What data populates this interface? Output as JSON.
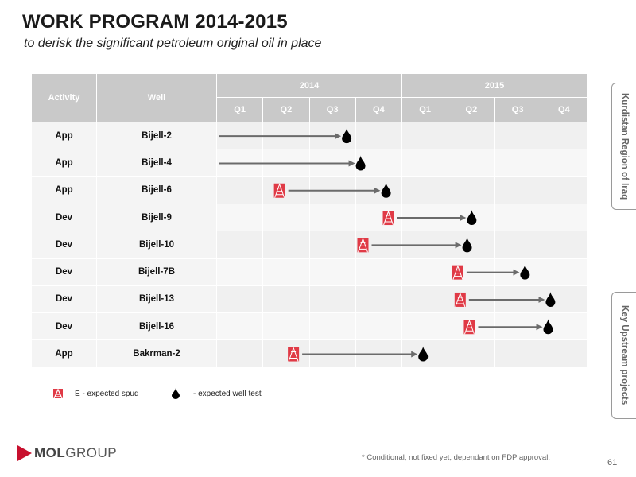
{
  "title": "WORK PROGRAM 2014-2015",
  "subtitle": "to derisk the significant petroleum original oil in place",
  "table": {
    "col_activity": "Activity",
    "col_well": "Well",
    "years": [
      "2014",
      "2015"
    ],
    "quarters": [
      "Q1",
      "Q2",
      "Q3",
      "Q4",
      "Q1",
      "Q2",
      "Q3",
      "Q4"
    ],
    "rows": [
      {
        "activity": "App",
        "well": "Bijell-2",
        "spud_q": null,
        "test_q": 2.8
      },
      {
        "activity": "App",
        "well": "Bijell-4",
        "spud_q": null,
        "test_q": 3.1
      },
      {
        "activity": "App",
        "well": "Bijell-6",
        "spud_q": 1.35,
        "test_q": 3.65
      },
      {
        "activity": "Dev",
        "well": "Bijell-9",
        "spud_q": 3.7,
        "test_q": 5.5
      },
      {
        "activity": "Dev",
        "well": "Bijell-10",
        "spud_q": 3.15,
        "test_q": 5.4
      },
      {
        "activity": "Dev",
        "well": "Bijell-7B",
        "spud_q": 5.2,
        "test_q": 6.65
      },
      {
        "activity": "Dev",
        "well": "Bijell-13",
        "spud_q": 5.25,
        "test_q": 7.2
      },
      {
        "activity": "Dev",
        "well": "Bijell-16",
        "spud_q": 5.45,
        "test_q": 7.15
      },
      {
        "activity": "App",
        "well": "Bakrman-2",
        "spud_q": 1.65,
        "test_q": 4.45
      }
    ]
  },
  "legend": {
    "spud": "E - expected spud",
    "test": "- expected well test"
  },
  "side_tabs": [
    "Kurdistan Region of Iraq",
    "Key Upstream projects"
  ],
  "logo": {
    "mol": "MOL",
    "group": "GROUP"
  },
  "footnote": "* Conditional, not fixed yet, dependant on FDP approval.",
  "page_number": "61",
  "colors": {
    "accent": "#c8102e",
    "header": "#c9c9c9",
    "arrow": "#6b6b6b"
  }
}
